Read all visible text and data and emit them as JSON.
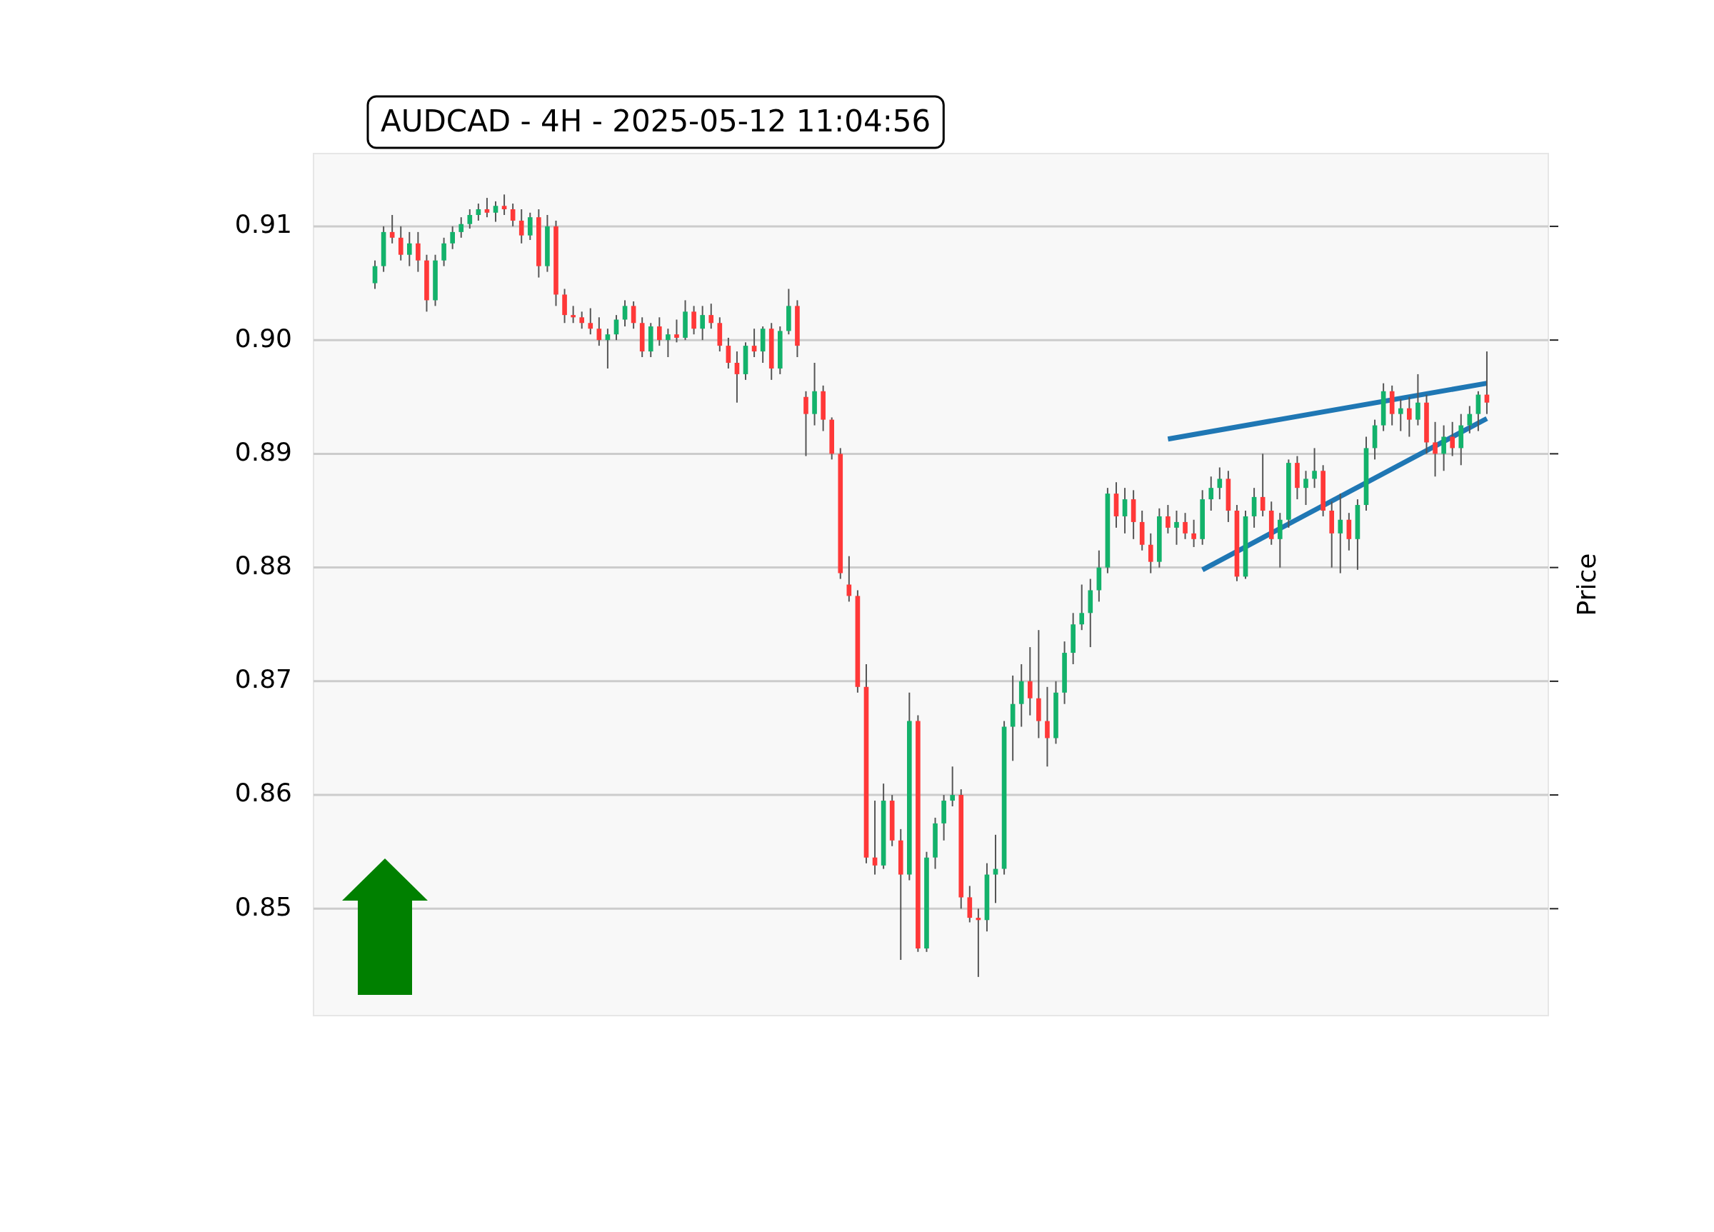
{
  "chart_data": {
    "type": "candlestick",
    "title": "AUDCAD - 4H - 2025-05-12 11:04:56",
    "ylabel": "Price",
    "categories": [
      null,
      null,
      null,
      null,
      null,
      null,
      null,
      null,
      null,
      null,
      null,
      null,
      null,
      null,
      null,
      null,
      null,
      null,
      null,
      null,
      null,
      null,
      null,
      null,
      null,
      null,
      null,
      null,
      null,
      null,
      null,
      null,
      null,
      null,
      null,
      null,
      null,
      null,
      null,
      null,
      null,
      null,
      null,
      null,
      null,
      null,
      null,
      null,
      null,
      null,
      null,
      null,
      null,
      null,
      null,
      null,
      null,
      null,
      null,
      null,
      null,
      null,
      null,
      null,
      null,
      null,
      null,
      null,
      null,
      null,
      null,
      null,
      null,
      null,
      null,
      null,
      null,
      null,
      null,
      null,
      null,
      null,
      null,
      null,
      null,
      null,
      null,
      null,
      null,
      null,
      null,
      null,
      null,
      null,
      null,
      null,
      null,
      null,
      null,
      null,
      null,
      null,
      null,
      null,
      null,
      null,
      null,
      null,
      null,
      null,
      null,
      null,
      null,
      null,
      null,
      null,
      null,
      null,
      null,
      null,
      null,
      null,
      null,
      null,
      null,
      null,
      null,
      null,
      null,
      null
    ],
    "ohlc": [
      [
        0.905,
        0.907,
        0.9045,
        0.9065
      ],
      [
        0.9065,
        0.91,
        0.906,
        0.9095
      ],
      [
        0.9095,
        0.911,
        0.9085,
        0.909
      ],
      [
        0.909,
        0.91,
        0.907,
        0.9075
      ],
      [
        0.9075,
        0.9095,
        0.9065,
        0.9085
      ],
      [
        0.9085,
        0.9095,
        0.906,
        0.907
      ],
      [
        0.907,
        0.9075,
        0.9025,
        0.9035
      ],
      [
        0.9035,
        0.9075,
        0.903,
        0.907
      ],
      [
        0.907,
        0.909,
        0.9065,
        0.9085
      ],
      [
        0.9085,
        0.91,
        0.908,
        0.9095
      ],
      [
        0.9095,
        0.9108,
        0.909,
        0.9102
      ],
      [
        0.9102,
        0.9115,
        0.9098,
        0.911
      ],
      [
        0.911,
        0.912,
        0.9105,
        0.9115
      ],
      [
        0.9115,
        0.9125,
        0.9108,
        0.9112
      ],
      [
        0.9112,
        0.9122,
        0.9104,
        0.9118
      ],
      [
        0.9118,
        0.9128,
        0.911,
        0.9115
      ],
      [
        0.9115,
        0.912,
        0.91,
        0.9105
      ],
      [
        0.9105,
        0.9115,
        0.9085,
        0.9092
      ],
      [
        0.9092,
        0.9112,
        0.9088,
        0.9108
      ],
      [
        0.9108,
        0.9115,
        0.9055,
        0.9065
      ],
      [
        0.9065,
        0.911,
        0.906,
        0.91
      ],
      [
        0.91,
        0.9105,
        0.903,
        0.904
      ],
      [
        0.904,
        0.9045,
        0.9015,
        0.9022
      ],
      [
        0.9022,
        0.903,
        0.9015,
        0.902
      ],
      [
        0.902,
        0.9025,
        0.901,
        0.9015
      ],
      [
        0.9015,
        0.9028,
        0.9005,
        0.901
      ],
      [
        0.901,
        0.902,
        0.8995,
        0.9
      ],
      [
        0.9,
        0.901,
        0.8975,
        0.9005
      ],
      [
        0.9005,
        0.9022,
        0.9,
        0.9018
      ],
      [
        0.9018,
        0.9035,
        0.9012,
        0.903
      ],
      [
        0.903,
        0.9034,
        0.901,
        0.9015
      ],
      [
        0.9015,
        0.902,
        0.8985,
        0.899
      ],
      [
        0.899,
        0.9015,
        0.8985,
        0.9012
      ],
      [
        0.9012,
        0.902,
        0.8995,
        0.9
      ],
      [
        0.9,
        0.901,
        0.8985,
        0.9005
      ],
      [
        0.9005,
        0.9018,
        0.8998,
        0.9002
      ],
      [
        0.9002,
        0.9035,
        0.9,
        0.9025
      ],
      [
        0.9025,
        0.903,
        0.9005,
        0.901
      ],
      [
        0.901,
        0.903,
        0.9,
        0.9022
      ],
      [
        0.9022,
        0.9032,
        0.901,
        0.9015
      ],
      [
        0.9015,
        0.902,
        0.899,
        0.8995
      ],
      [
        0.8995,
        0.9002,
        0.8975,
        0.898
      ],
      [
        0.898,
        0.899,
        0.8945,
        0.897
      ],
      [
        0.897,
        0.8998,
        0.8965,
        0.8995
      ],
      [
        0.8995,
        0.901,
        0.8985,
        0.899
      ],
      [
        0.899,
        0.9012,
        0.898,
        0.901
      ],
      [
        0.901,
        0.9015,
        0.8965,
        0.8975
      ],
      [
        0.8975,
        0.9012,
        0.897,
        0.9008
      ],
      [
        0.9008,
        0.9045,
        0.9005,
        0.903
      ],
      [
        0.903,
        0.9035,
        0.8985,
        0.8995
      ],
      [
        0.895,
        0.8955,
        0.8898,
        0.8935
      ],
      [
        0.8935,
        0.898,
        0.8925,
        0.8955
      ],
      [
        0.8955,
        0.896,
        0.892,
        0.893
      ],
      [
        0.893,
        0.8932,
        0.8895,
        0.89
      ],
      [
        0.89,
        0.8905,
        0.879,
        0.8795
      ],
      [
        0.8785,
        0.881,
        0.877,
        0.8775
      ],
      [
        0.8775,
        0.878,
        0.869,
        0.8695
      ],
      [
        0.8695,
        0.8715,
        0.854,
        0.8545
      ],
      [
        0.8545,
        0.8595,
        0.853,
        0.8538
      ],
      [
        0.8538,
        0.861,
        0.8535,
        0.8595
      ],
      [
        0.8595,
        0.86,
        0.8555,
        0.856
      ],
      [
        0.856,
        0.857,
        0.8455,
        0.853
      ],
      [
        0.853,
        0.869,
        0.8525,
        0.8665
      ],
      [
        0.8665,
        0.867,
        0.8462,
        0.8465
      ],
      [
        0.8465,
        0.855,
        0.8462,
        0.8545
      ],
      [
        0.8545,
        0.858,
        0.8535,
        0.8575
      ],
      [
        0.8575,
        0.86,
        0.856,
        0.8595
      ],
      [
        0.8595,
        0.8625,
        0.859,
        0.86
      ],
      [
        0.86,
        0.8605,
        0.85,
        0.851
      ],
      [
        0.851,
        0.852,
        0.8488,
        0.8492
      ],
      [
        0.8492,
        0.85,
        0.844,
        0.849
      ],
      [
        0.849,
        0.854,
        0.848,
        0.853
      ],
      [
        0.853,
        0.8565,
        0.8505,
        0.8535
      ],
      [
        0.8535,
        0.8665,
        0.853,
        0.866
      ],
      [
        0.866,
        0.8705,
        0.863,
        0.868
      ],
      [
        0.868,
        0.8715,
        0.866,
        0.87
      ],
      [
        0.87,
        0.873,
        0.867,
        0.8685
      ],
      [
        0.8685,
        0.8745,
        0.865,
        0.8665
      ],
      [
        0.8665,
        0.8695,
        0.8625,
        0.865
      ],
      [
        0.865,
        0.87,
        0.8645,
        0.869
      ],
      [
        0.869,
        0.8735,
        0.868,
        0.8725
      ],
      [
        0.8725,
        0.876,
        0.8715,
        0.875
      ],
      [
        0.875,
        0.8785,
        0.8745,
        0.876
      ],
      [
        0.876,
        0.879,
        0.873,
        0.878
      ],
      [
        0.878,
        0.8815,
        0.877,
        0.88
      ],
      [
        0.88,
        0.887,
        0.8795,
        0.8865
      ],
      [
        0.8865,
        0.8875,
        0.8835,
        0.8845
      ],
      [
        0.8845,
        0.887,
        0.883,
        0.886
      ],
      [
        0.886,
        0.8868,
        0.8825,
        0.884
      ],
      [
        0.884,
        0.885,
        0.8815,
        0.882
      ],
      [
        0.882,
        0.883,
        0.8795,
        0.8805
      ],
      [
        0.8805,
        0.8852,
        0.88,
        0.8845
      ],
      [
        0.8845,
        0.8855,
        0.883,
        0.8835
      ],
      [
        0.8835,
        0.885,
        0.882,
        0.884
      ],
      [
        0.884,
        0.8848,
        0.8825,
        0.883
      ],
      [
        0.883,
        0.8842,
        0.8818,
        0.8825
      ],
      [
        0.8825,
        0.8868,
        0.882,
        0.886
      ],
      [
        0.886,
        0.888,
        0.885,
        0.887
      ],
      [
        0.887,
        0.8888,
        0.886,
        0.8878
      ],
      [
        0.8878,
        0.8885,
        0.884,
        0.885
      ],
      [
        0.885,
        0.8855,
        0.8788,
        0.8792
      ],
      [
        0.8792,
        0.885,
        0.879,
        0.8845
      ],
      [
        0.8845,
        0.887,
        0.8835,
        0.8862
      ],
      [
        0.8862,
        0.89,
        0.8845,
        0.885
      ],
      [
        0.885,
        0.8858,
        0.882,
        0.8825
      ],
      [
        0.8825,
        0.8848,
        0.88,
        0.8842
      ],
      [
        0.8842,
        0.8895,
        0.8835,
        0.8892
      ],
      [
        0.8892,
        0.8898,
        0.886,
        0.887
      ],
      [
        0.887,
        0.8885,
        0.8855,
        0.8878
      ],
      [
        0.8878,
        0.8905,
        0.887,
        0.8885
      ],
      [
        0.8885,
        0.889,
        0.8845,
        0.885
      ],
      [
        0.885,
        0.8858,
        0.88,
        0.883
      ],
      [
        0.883,
        0.8865,
        0.8795,
        0.8842
      ],
      [
        0.8842,
        0.8848,
        0.8815,
        0.8825
      ],
      [
        0.8825,
        0.886,
        0.8798,
        0.8855
      ],
      [
        0.8855,
        0.8915,
        0.885,
        0.8905
      ],
      [
        0.8905,
        0.893,
        0.8895,
        0.8925
      ],
      [
        0.8925,
        0.8962,
        0.892,
        0.8955
      ],
      [
        0.8955,
        0.896,
        0.8925,
        0.8935
      ],
      [
        0.8935,
        0.8948,
        0.892,
        0.894
      ],
      [
        0.894,
        0.895,
        0.8915,
        0.893
      ],
      [
        0.893,
        0.897,
        0.8925,
        0.8945
      ],
      [
        0.8945,
        0.8952,
        0.89,
        0.891
      ],
      [
        0.891,
        0.8928,
        0.888,
        0.89
      ],
      [
        0.89,
        0.8925,
        0.8885,
        0.8915
      ],
      [
        0.8915,
        0.8928,
        0.8898,
        0.8905
      ],
      [
        0.8905,
        0.8935,
        0.889,
        0.8925
      ],
      [
        0.8925,
        0.8942,
        0.8918,
        0.8935
      ],
      [
        0.8935,
        0.8955,
        0.892,
        0.8952
      ],
      [
        0.8952,
        0.899,
        0.8935,
        0.8945
      ]
    ],
    "series": [
      {
        "type": "line",
        "color": "#1f77b4",
        "values": [
          null,
          null,
          null,
          null,
          null,
          null,
          null,
          null,
          null,
          null,
          null,
          null,
          null,
          null,
          null,
          null,
          null,
          null,
          null,
          null,
          null,
          null,
          null,
          null,
          null,
          null,
          null,
          null,
          null,
          null,
          null,
          null,
          null,
          null,
          null,
          null,
          null,
          null,
          null,
          null,
          null,
          null,
          null,
          null,
          null,
          null,
          null,
          null,
          null,
          null,
          null,
          null,
          null,
          null,
          null,
          null,
          null,
          null,
          null,
          null,
          null,
          null,
          null,
          null,
          null,
          null,
          null,
          null,
          null,
          null,
          null,
          null,
          null,
          null,
          null,
          null,
          null,
          null,
          null,
          null,
          null,
          null,
          null,
          null,
          null,
          null,
          null,
          null,
          null,
          null,
          null,
          null,
          0.8913,
          null,
          null,
          null,
          null,
          null,
          null,
          null,
          null,
          null,
          null,
          null,
          null,
          null,
          null,
          null,
          null,
          null,
          null,
          null,
          null,
          null,
          null,
          null,
          null,
          null,
          null,
          null,
          null,
          null,
          null,
          null,
          null,
          null,
          null,
          null,
          null,
          0.8962
        ]
      },
      {
        "type": "line",
        "color": "#1f77b4",
        "values": [
          null,
          null,
          null,
          null,
          null,
          null,
          null,
          null,
          null,
          null,
          null,
          null,
          null,
          null,
          null,
          null,
          null,
          null,
          null,
          null,
          null,
          null,
          null,
          null,
          null,
          null,
          null,
          null,
          null,
          null,
          null,
          null,
          null,
          null,
          null,
          null,
          null,
          null,
          null,
          null,
          null,
          null,
          null,
          null,
          null,
          null,
          null,
          null,
          null,
          null,
          null,
          null,
          null,
          null,
          null,
          null,
          null,
          null,
          null,
          null,
          null,
          null,
          null,
          null,
          null,
          null,
          null,
          null,
          null,
          null,
          null,
          null,
          null,
          null,
          null,
          null,
          null,
          null,
          null,
          null,
          null,
          null,
          null,
          null,
          null,
          null,
          null,
          null,
          null,
          null,
          null,
          null,
          null,
          null,
          null,
          null,
          0.8798,
          null,
          null,
          null,
          null,
          null,
          null,
          null,
          null,
          null,
          null,
          null,
          null,
          null,
          null,
          null,
          null,
          null,
          null,
          null,
          null,
          null,
          null,
          null,
          null,
          null,
          null,
          null,
          null,
          null,
          null,
          null,
          null,
          0.8931
        ]
      }
    ],
    "ylim": [
      0.8406,
      0.9164
    ],
    "yticks": [
      0.85,
      0.86,
      0.87,
      0.88,
      0.89,
      {
        "value": 0.9,
        "label": "0.90"
      },
      0.91
    ],
    "grid": "y",
    "legend": false
  }
}
